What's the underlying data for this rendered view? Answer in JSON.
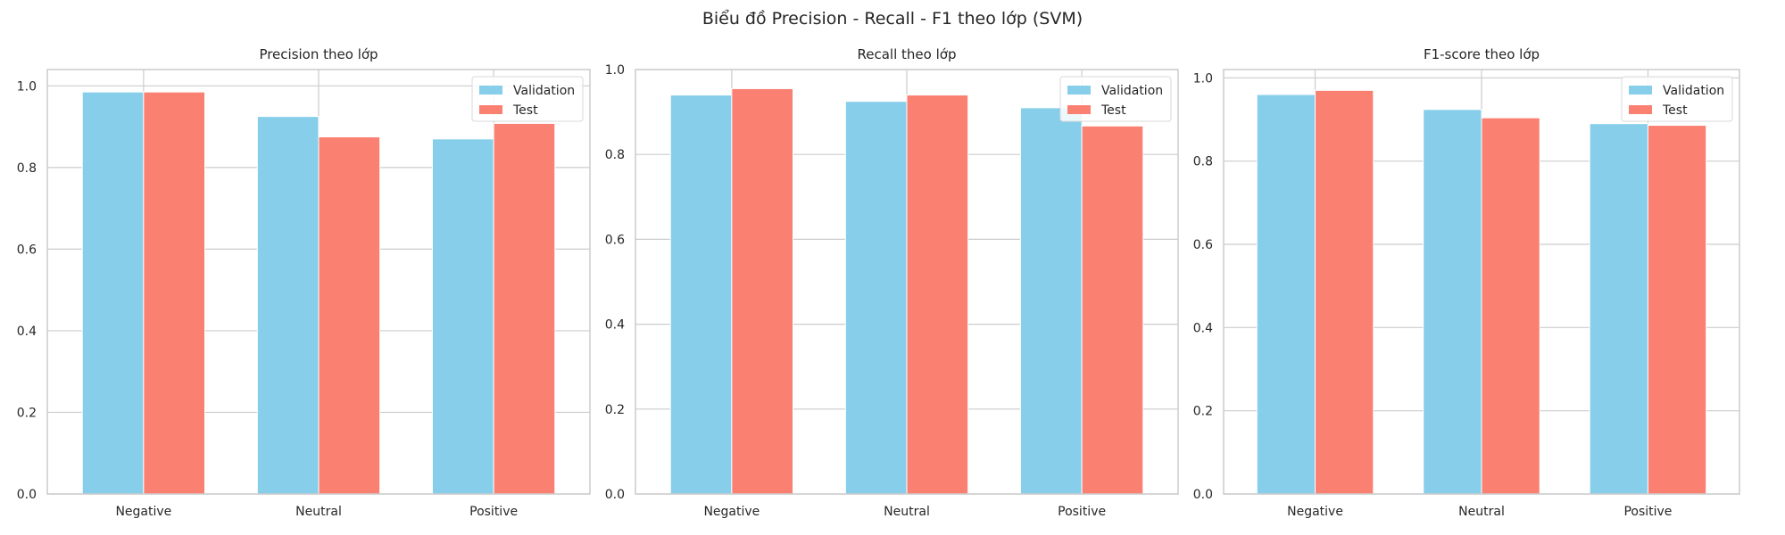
{
  "suptitle": "Biểu đồ Precision - Recall - F1 theo lớp (SVM)",
  "colors": {
    "validation": "#87CEEB",
    "test": "#FA8072",
    "grid": "#cccccc",
    "frame": "#cccccc"
  },
  "chart_data": [
    {
      "type": "bar",
      "title": "Precision theo lớp",
      "categories": [
        "Negative",
        "Neutral",
        "Positive"
      ],
      "series": [
        {
          "name": "Validation",
          "values": [
            0.985,
            0.925,
            0.87
          ]
        },
        {
          "name": "Test",
          "values": [
            0.985,
            0.875,
            0.908
          ]
        }
      ],
      "ylim": [
        0,
        1.04
      ],
      "yticks": [
        "0.0",
        "0.2",
        "0.4",
        "0.6",
        "0.8",
        "1.0"
      ],
      "grid": true,
      "legend": "top-right"
    },
    {
      "type": "bar",
      "title": "Recall theo lớp",
      "categories": [
        "Negative",
        "Neutral",
        "Positive"
      ],
      "series": [
        {
          "name": "Validation",
          "values": [
            0.94,
            0.925,
            0.91
          ]
        },
        {
          "name": "Test",
          "values": [
            0.955,
            0.94,
            0.867
          ]
        }
      ],
      "ylim": [
        0,
        1.0
      ],
      "yticks": [
        "0.0",
        "0.2",
        "0.4",
        "0.6",
        "0.8",
        "1.0"
      ],
      "grid": true,
      "legend": "top-right"
    },
    {
      "type": "bar",
      "title": "F1-score theo lớp",
      "categories": [
        "Negative",
        "Neutral",
        "Positive"
      ],
      "series": [
        {
          "name": "Validation",
          "values": [
            0.96,
            0.924,
            0.89
          ]
        },
        {
          "name": "Test",
          "values": [
            0.97,
            0.904,
            0.886
          ]
        }
      ],
      "ylim": [
        0,
        1.02
      ],
      "yticks": [
        "0.0",
        "0.2",
        "0.4",
        "0.6",
        "0.8",
        "1.0"
      ],
      "grid": true,
      "legend": "top-right"
    }
  ]
}
